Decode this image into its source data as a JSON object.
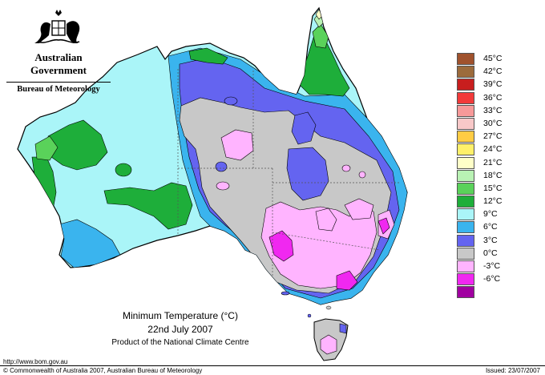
{
  "header": {
    "government": "Australian Government",
    "bureau": "Bureau of Meteorology"
  },
  "legend": {
    "items": [
      {
        "label": "45°C",
        "color": "#a0522d"
      },
      {
        "label": "42°C",
        "color": "#9c6b3c"
      },
      {
        "label": "39°C",
        "color": "#c81e1e"
      },
      {
        "label": "36°C",
        "color": "#f23a3a"
      },
      {
        "label": "33°C",
        "color": "#f79999"
      },
      {
        "label": "30°C",
        "color": "#f8c8c8"
      },
      {
        "label": "27°C",
        "color": "#ffcc44"
      },
      {
        "label": "24°C",
        "color": "#fff06a"
      },
      {
        "label": "21°C",
        "color": "#ffffc8"
      },
      {
        "label": "18°C",
        "color": "#b9f2b4"
      },
      {
        "label": "15°C",
        "color": "#5ad25a"
      },
      {
        "label": "12°C",
        "color": "#1eae3a"
      },
      {
        "label": "9°C",
        "color": "#aaf5f8"
      },
      {
        "label": "6°C",
        "color": "#3ab4ee"
      },
      {
        "label": "3°C",
        "color": "#6464f0"
      },
      {
        "label": "0°C",
        "color": "#c8c8c8"
      },
      {
        "label": "-3°C",
        "color": "#ffb4ff"
      },
      {
        "label": "-6°C",
        "color": "#f028f0"
      },
      {
        "label": "",
        "color": "#a000a0"
      }
    ]
  },
  "caption": {
    "title": "Minimum Temperature (°C)",
    "date": "22nd July 2007",
    "product": "Product of the National Climate Centre"
  },
  "footer": {
    "url": "http://www.bom.gov.au",
    "copyright": "© Commonwealth of Australia 2007, Australian Bureau of Meteorology",
    "issued": "Issued: 23/07/2007"
  }
}
